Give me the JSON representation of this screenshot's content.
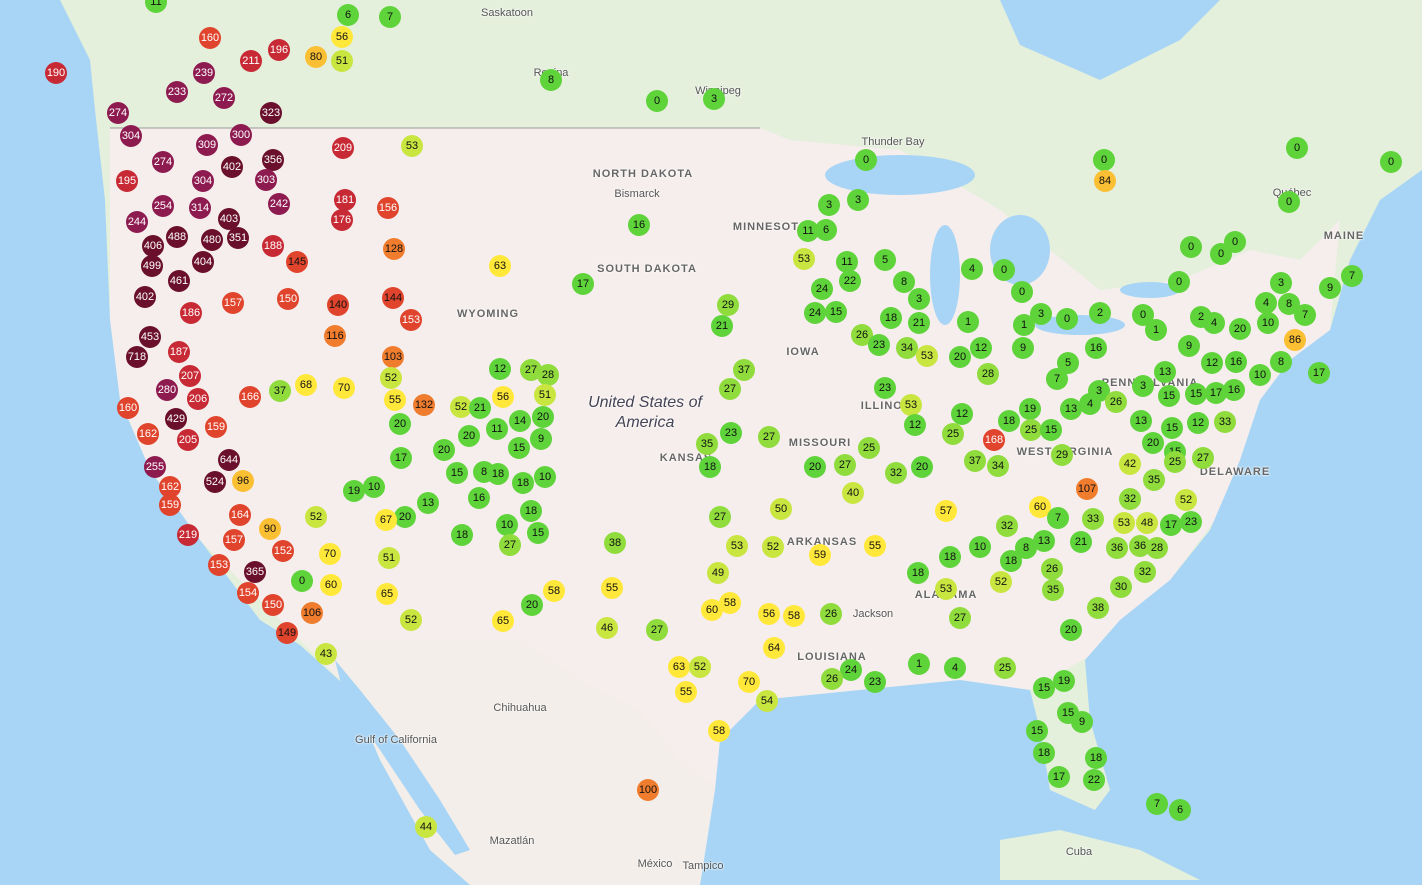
{
  "places": [
    "Saskatoon",
    "Regina",
    "Winnipeg",
    "Thunder Bay",
    "NORTH DAKOTA",
    "Bismarck",
    "MINNESOTA",
    "SOUTH DAKOTA",
    "WYOMING",
    "IOWA",
    "United States of America",
    "KANSAS",
    "MISSOURI",
    "ILLINOIS",
    "ARKANSAS",
    "LOUISIANA",
    "ALABAMA",
    "Jackson",
    "Chihuahua",
    "Gulf of California",
    "Mazatlán",
    "México",
    "Tampico",
    "Cuba",
    "MAINE",
    "Québec",
    "WEST VIRGINIA",
    "DELAWARE",
    "PENNSYLVANIA"
  ],
  "markers": [
    11,
    6,
    7,
    160,
    56,
    80,
    51,
    196,
    211,
    190,
    239,
    233,
    272,
    8,
    0,
    3,
    274,
    323,
    304,
    300,
    309,
    53,
    209,
    0,
    0,
    0,
    0,
    274,
    356,
    402,
    195,
    304,
    303,
    84,
    181,
    254,
    314,
    242,
    156,
    3,
    3,
    0,
    244,
    403,
    176,
    0,
    0,
    16,
    11,
    6,
    406,
    488,
    480,
    351,
    188,
    128,
    499,
    404,
    145,
    63,
    53,
    11,
    5,
    0,
    4,
    0,
    461,
    17,
    22,
    24,
    7,
    0,
    402,
    157,
    150,
    140,
    144,
    29,
    8,
    3,
    0,
    9,
    3,
    4,
    8,
    186,
    153,
    24,
    15,
    18,
    21,
    1,
    3,
    0,
    2,
    0,
    2,
    4,
    20,
    10,
    7,
    21,
    453,
    116,
    26,
    23,
    34,
    53,
    12,
    1,
    9,
    16,
    1,
    9,
    86,
    718,
    187,
    103,
    12,
    27,
    28,
    37,
    20,
    28,
    5,
    7,
    13,
    12,
    16,
    8,
    17,
    207,
    52,
    280,
    37,
    68,
    70,
    166,
    27,
    23,
    3,
    3,
    15,
    15,
    17,
    16,
    10,
    160,
    206,
    55,
    132,
    52,
    21,
    56,
    51,
    53,
    4,
    26,
    13,
    429,
    20,
    20,
    14,
    12,
    18,
    19,
    13,
    15,
    12,
    33,
    162,
    11,
    23,
    27,
    20,
    9,
    35,
    159,
    205,
    12,
    25,
    168,
    25,
    15,
    20,
    15,
    644,
    20,
    15,
    25,
    29,
    37,
    34,
    17,
    18,
    20,
    27,
    32,
    20,
    255,
    15,
    8,
    18,
    42,
    35,
    25,
    27,
    524,
    96,
    162,
    10,
    18,
    40,
    107,
    32,
    52,
    19,
    10,
    16,
    159,
    13,
    164,
    52,
    20,
    67,
    18,
    27,
    50,
    57,
    60,
    7,
    33,
    53,
    48,
    17,
    23,
    90,
    219,
    10,
    15,
    32,
    157,
    18,
    27,
    38,
    53,
    52,
    55,
    13,
    21,
    36,
    36,
    28,
    10,
    8,
    152,
    70,
    51,
    59,
    18,
    18,
    153,
    365,
    26,
    32,
    18,
    0,
    60,
    52,
    55,
    58,
    53,
    35,
    30,
    154,
    65,
    49,
    150,
    58,
    60,
    106,
    56,
    58,
    26,
    20,
    38,
    52,
    65,
    46,
    27,
    27,
    20,
    149,
    43,
    64,
    63,
    52,
    24,
    1,
    4,
    25,
    19,
    26,
    23,
    70,
    55,
    15,
    54,
    15,
    9,
    15,
    58,
    18,
    18,
    17,
    22,
    100,
    7,
    6,
    44
  ]
}
